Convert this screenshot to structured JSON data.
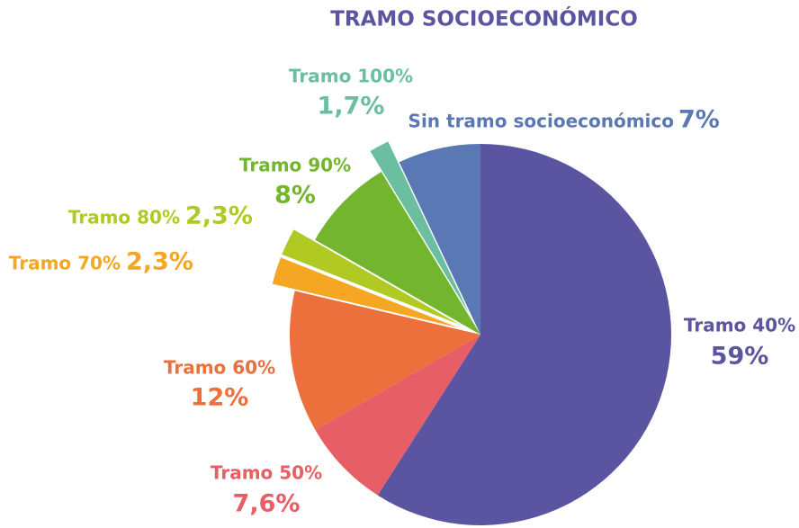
{
  "chart_data": {
    "type": "pie",
    "title": "TRAMO SOCIOECONÓMICO",
    "categories": [
      "Tramo 40%",
      "Tramo 50%",
      "Tramo 60%",
      "Tramo 70%",
      "Tramo 80%",
      "Tramo 90%",
      "Tramo 100%",
      "Sin tramo socioeconómico"
    ],
    "values": [
      59,
      7.6,
      12,
      2.3,
      2.3,
      8,
      1.7,
      7
    ],
    "value_labels": [
      "59%",
      "7,6%",
      "12%",
      "2,3%",
      "2,3%",
      "8%",
      "1,7%",
      "7%"
    ],
    "colors": [
      "#5b54a0",
      "#e85e67",
      "#ec703c",
      "#f5a623",
      "#b1c923",
      "#74b52f",
      "#6bbfa0",
      "#5a78b3"
    ],
    "exploded": [
      false,
      false,
      false,
      true,
      true,
      false,
      true,
      false
    ]
  }
}
